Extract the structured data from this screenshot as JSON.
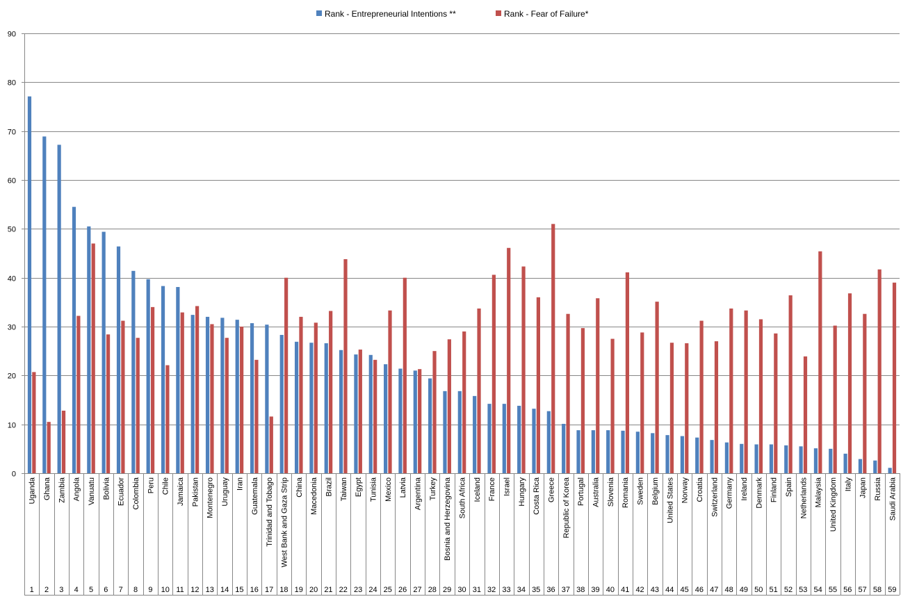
{
  "chart_data": {
    "type": "bar",
    "title": "",
    "xlabel": "",
    "ylabel": "",
    "ylim": [
      0,
      90
    ],
    "y_ticks": [
      0,
      10,
      20,
      30,
      40,
      50,
      60,
      70,
      80,
      90
    ],
    "grid": true,
    "legend_position": "top-center",
    "categories": [
      "Uganda",
      "Ghana",
      "Zambia",
      "Angola",
      "Vanuatu",
      "Bolivia",
      "Ecuador",
      "Colombia",
      "Peru",
      "Chile",
      "Jamaica",
      "Pakistan",
      "Montenegro",
      "Uruguay",
      "Iran",
      "Guatemala",
      "Trinidad and Tobago",
      "West Bank and Gaza Strip",
      "China",
      "Macedonia",
      "Brazil",
      "Taiwan",
      "Egypt",
      "Tunisia",
      "Mexico",
      "Latvia",
      "Argentina",
      "Turkey",
      "Bosnia and Herzegovina",
      "South Africa",
      "Iceland",
      "France",
      "Israel",
      "Hungary",
      "Costa Rica",
      "Greece",
      "Republic of Korea",
      "Portugal",
      "Australia",
      "Slovenia",
      "Romania",
      "Sweden",
      "Belgium",
      "United States",
      "Norway",
      "Croatia",
      "Switzerland",
      "Germany",
      "Ireland",
      "Denmark",
      "Finland",
      "Spain",
      "Netherlands",
      "Malaysia",
      "United Kingdom",
      "Italy",
      "Japan",
      "Russia",
      "Saudi Arabia"
    ],
    "numbers": [
      "1",
      "2",
      "3",
      "4",
      "5",
      "6",
      "7",
      "8",
      "9",
      "10",
      "11",
      "12",
      "13",
      "14",
      "15",
      "16",
      "17",
      "18",
      "19",
      "20",
      "21",
      "22",
      "23",
      "24",
      "25",
      "26",
      "27",
      "28",
      "29",
      "30",
      "31",
      "32",
      "33",
      "34",
      "35",
      "36",
      "37",
      "38",
      "39",
      "40",
      "41",
      "42",
      "43",
      "44",
      "45",
      "46",
      "47",
      "48",
      "49",
      "50",
      "51",
      "52",
      "53",
      "54",
      "55",
      "56",
      "57",
      "58",
      "59"
    ],
    "series": [
      {
        "name": "Rank - Entrepreneurial Intentions **",
        "color": "#4f81bd",
        "values": [
          77.1,
          68.9,
          67.2,
          54.5,
          50.5,
          49.4,
          46.4,
          41.4,
          39.7,
          38.3,
          38.1,
          32.4,
          32.0,
          31.8,
          31.4,
          30.7,
          30.4,
          28.3,
          26.9,
          26.7,
          26.6,
          25.2,
          24.3,
          24.2,
          22.3,
          21.4,
          21.0,
          19.4,
          16.8,
          16.8,
          15.8,
          14.2,
          14.2,
          13.8,
          13.2,
          12.7,
          10.1,
          8.8,
          8.8,
          8.8,
          8.7,
          8.5,
          8.2,
          7.8,
          7.6,
          7.3,
          6.8,
          6.3,
          6.0,
          5.9,
          5.9,
          5.7,
          5.5,
          5.1,
          5.0,
          4.0,
          2.9,
          2.6,
          1.1
        ]
      },
      {
        "name": "Rank - Fear of Failure*",
        "color": "#c0504d",
        "values": [
          20.7,
          10.5,
          12.8,
          32.2,
          47.0,
          28.4,
          31.2,
          27.7,
          34.0,
          22.1,
          32.9,
          34.2,
          30.5,
          27.7,
          30.0,
          23.2,
          11.6,
          40.0,
          32.0,
          30.8,
          33.2,
          43.8,
          25.3,
          23.2,
          33.3,
          40.0,
          21.3,
          25.0,
          27.4,
          29.0,
          33.7,
          40.6,
          46.1,
          42.3,
          36.0,
          51.0,
          32.6,
          29.7,
          35.8,
          27.5,
          41.1,
          28.8,
          35.1,
          26.7,
          26.6,
          31.2,
          27.0,
          33.7,
          33.3,
          31.5,
          28.6,
          36.4,
          23.9,
          45.4,
          30.2,
          36.8,
          32.6,
          41.7,
          39.0
        ]
      }
    ]
  }
}
